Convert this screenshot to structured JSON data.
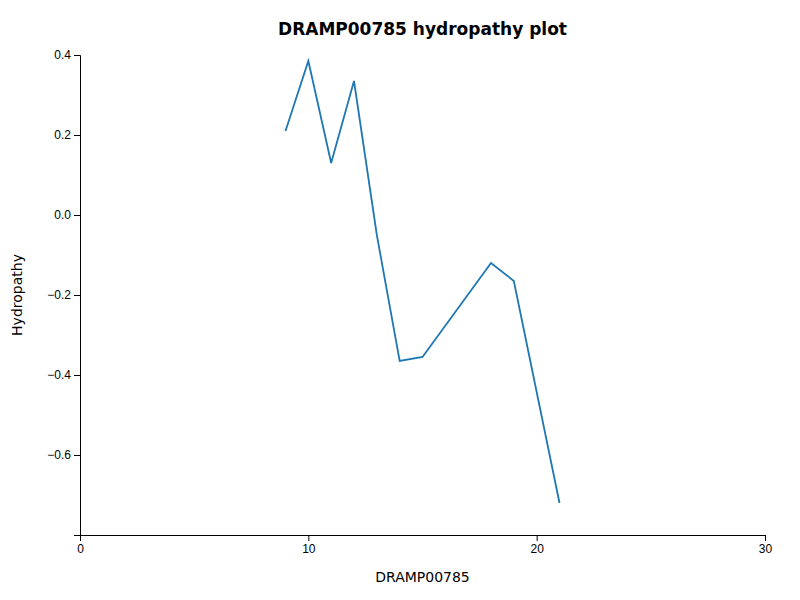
{
  "chart_data": {
    "type": "line",
    "title": "DRAMP00785 hydropathy plot",
    "xlabel": "DRAMP00785",
    "ylabel": "Hydropathy",
    "x": [
      9,
      10,
      11,
      12,
      13,
      14,
      15,
      18,
      19,
      21
    ],
    "values": [
      0.21,
      0.385,
      0.13,
      0.335,
      -0.05,
      -0.365,
      -0.355,
      -0.12,
      -0.165,
      -0.72
    ],
    "xlim": [
      0,
      30
    ],
    "ylim": [
      -0.8,
      0.4
    ],
    "xticks": [
      0,
      10,
      20,
      30
    ],
    "yticks": [
      0.4,
      0.2,
      {
        "value": 0.0,
        "label": "0.0"
      },
      {
        "value": -0.2,
        "label": "−0.2"
      },
      {
        "value": -0.4,
        "label": "−0.4"
      },
      {
        "value": -0.6,
        "label": "−0.6"
      }
    ]
  }
}
